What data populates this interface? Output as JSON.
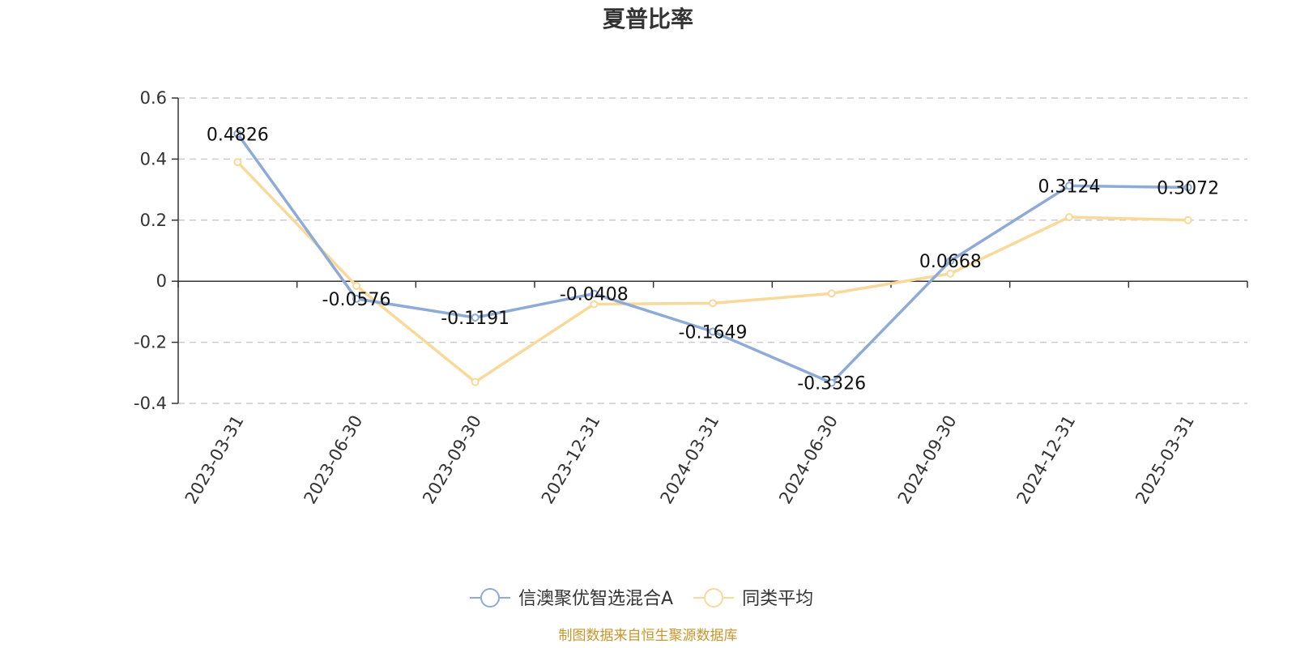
{
  "chart_data": {
    "type": "line",
    "title": "夏普比率",
    "xlabel": "",
    "ylabel": "",
    "categories": [
      "2023-03-31",
      "2023-06-30",
      "2023-09-30",
      "2023-12-31",
      "2024-03-31",
      "2024-06-30",
      "2024-09-30",
      "2024-12-31",
      "2025-03-31"
    ],
    "ylim": [
      -0.4,
      0.6
    ],
    "yticks": [
      -0.4,
      -0.2,
      0,
      0.2,
      0.4,
      0.6
    ],
    "ytick_labels": [
      "-0.4",
      "-0.2",
      "0",
      "0.2",
      "0.4",
      "0.6"
    ],
    "grid": true,
    "legend_position": "bottom-center",
    "series": [
      {
        "name": "信澳聚优智选混合A",
        "color": "#8eaad6",
        "values": [
          0.4826,
          -0.0576,
          -0.1191,
          -0.0408,
          -0.1649,
          -0.3326,
          0.0668,
          0.3124,
          0.3072
        ],
        "labels": [
          "0.4826",
          "-0.0576",
          "-0.1191",
          "-0.0408",
          "-0.1649",
          "-0.3326",
          "0.0668",
          "0.3124",
          "0.3072"
        ]
      },
      {
        "name": "同类平均",
        "color": "#f9d99a",
        "values": [
          0.39,
          -0.015,
          -0.33,
          -0.075,
          -0.072,
          -0.04,
          0.025,
          0.21,
          0.2
        ]
      }
    ],
    "source_note": "制图数据来自恒生聚源数据库"
  }
}
